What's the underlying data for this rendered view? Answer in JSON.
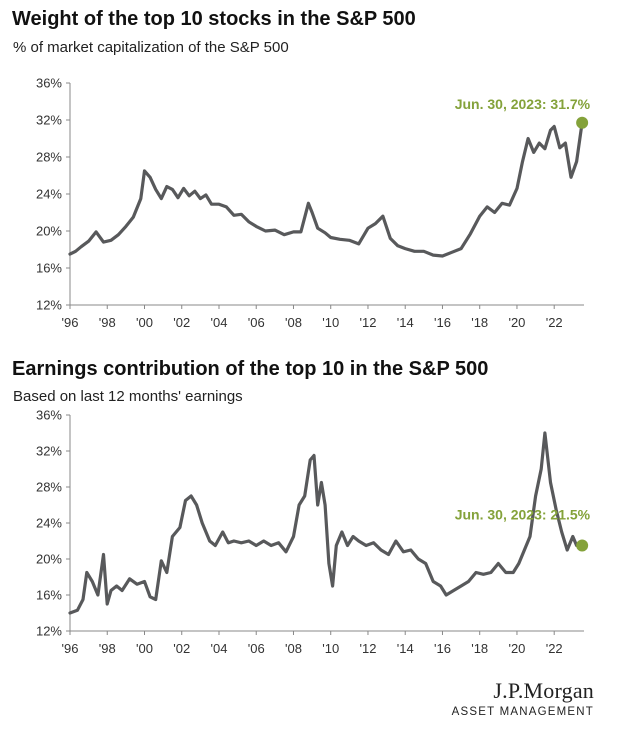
{
  "colors": {
    "line": "#58595b",
    "accent": "#84a23a",
    "grid": "#d9d9d9",
    "axis": "#888888"
  },
  "brand": {
    "name": "J.P.Morgan",
    "sub": "ASSET MANAGEMENT"
  },
  "chart_data": [
    {
      "type": "line",
      "title": "Weight of the top 10 stocks in the S&P 500",
      "subtitle": "% of market capitalization of the S&P 500",
      "xlim": [
        1996,
        2023.6
      ],
      "ylim": [
        12,
        36
      ],
      "grid": false,
      "x_ticks": [
        1996,
        1998,
        2000,
        2002,
        2004,
        2006,
        2008,
        2010,
        2012,
        2014,
        2016,
        2018,
        2020,
        2022
      ],
      "x_tick_labels": [
        "'96",
        "'98",
        "'00",
        "'02",
        "'04",
        "'06",
        "'08",
        "'10",
        "'12",
        "'14",
        "'16",
        "'18",
        "'20",
        "'22"
      ],
      "y_ticks": [
        12,
        16,
        20,
        24,
        28,
        32,
        36
      ],
      "y_tick_labels": [
        "12%",
        "16%",
        "20%",
        "24%",
        "28%",
        "32%",
        "36%"
      ],
      "series": [
        {
          "x": [
            1996.0,
            1996.3,
            1996.6,
            1997.0,
            1997.4,
            1997.8,
            1998.2,
            1998.6,
            1999.0,
            1999.4,
            1999.8,
            2000.0,
            2000.3,
            2000.6,
            2000.9,
            2001.2,
            2001.5,
            2001.8,
            2002.1,
            2002.4,
            2002.7,
            2003.0,
            2003.3,
            2003.6,
            2004.0,
            2004.4,
            2004.8,
            2005.2,
            2005.6,
            2006.0,
            2006.5,
            2007.0,
            2007.5,
            2008.0,
            2008.4,
            2008.8,
            2009.0,
            2009.3,
            2009.7,
            2010.0,
            2010.5,
            2011.0,
            2011.5,
            2012.0,
            2012.4,
            2012.8,
            2013.2,
            2013.6,
            2014.0,
            2014.5,
            2015.0,
            2015.5,
            2016.0,
            2016.5,
            2017.0,
            2017.5,
            2018.0,
            2018.4,
            2018.8,
            2019.2,
            2019.6,
            2020.0,
            2020.3,
            2020.6,
            2020.9,
            2021.2,
            2021.5,
            2021.8,
            2022.0,
            2022.3,
            2022.6,
            2022.9,
            2023.2,
            2023.5
          ],
          "values": [
            17.5,
            17.8,
            18.3,
            18.9,
            19.9,
            18.8,
            19.0,
            19.6,
            20.5,
            21.5,
            23.5,
            26.5,
            25.8,
            24.5,
            23.5,
            24.8,
            24.5,
            23.6,
            24.6,
            23.8,
            24.3,
            23.5,
            23.9,
            22.9,
            22.9,
            22.6,
            21.7,
            21.8,
            21.0,
            20.5,
            20.0,
            20.1,
            19.6,
            19.9,
            19.9,
            23.0,
            22.0,
            20.3,
            19.8,
            19.3,
            19.1,
            19.0,
            18.6,
            20.3,
            20.8,
            21.6,
            19.2,
            18.4,
            18.1,
            17.8,
            17.8,
            17.4,
            17.3,
            17.7,
            18.1,
            19.7,
            21.6,
            22.6,
            22.0,
            23.0,
            22.8,
            24.6,
            27.5,
            30.0,
            28.5,
            29.5,
            28.9,
            30.9,
            31.3,
            29.0,
            29.5,
            25.8,
            27.5,
            31.7
          ]
        }
      ],
      "highlight": {
        "x": 2023.5,
        "y": 31.7,
        "label": "Jun. 30, 2023: 31.7%"
      }
    },
    {
      "type": "line",
      "title": "Earnings contribution of the top 10 in the S&P 500",
      "subtitle": "Based on last 12 months' earnings",
      "xlim": [
        1996,
        2023.6
      ],
      "ylim": [
        12,
        36
      ],
      "grid": false,
      "x_ticks": [
        1996,
        1998,
        2000,
        2002,
        2004,
        2006,
        2008,
        2010,
        2012,
        2014,
        2016,
        2018,
        2020,
        2022
      ],
      "x_tick_labels": [
        "'96",
        "'98",
        "'00",
        "'02",
        "'04",
        "'06",
        "'08",
        "'10",
        "'12",
        "'14",
        "'16",
        "'18",
        "'20",
        "'22"
      ],
      "y_ticks": [
        12,
        16,
        20,
        24,
        28,
        32,
        36
      ],
      "y_tick_labels": [
        "12%",
        "16%",
        "20%",
        "24%",
        "28%",
        "32%",
        "36%"
      ],
      "series": [
        {
          "x": [
            1996.0,
            1996.4,
            1996.7,
            1996.9,
            1997.2,
            1997.5,
            1997.8,
            1998.0,
            1998.2,
            1998.5,
            1998.8,
            1999.2,
            1999.6,
            2000.0,
            2000.3,
            2000.6,
            2000.9,
            2001.2,
            2001.5,
            2001.9,
            2002.2,
            2002.5,
            2002.8,
            2003.1,
            2003.5,
            2003.8,
            2004.2,
            2004.5,
            2004.8,
            2005.2,
            2005.6,
            2006.0,
            2006.4,
            2006.8,
            2007.2,
            2007.6,
            2008.0,
            2008.3,
            2008.6,
            2008.9,
            2009.1,
            2009.3,
            2009.5,
            2009.7,
            2009.9,
            2010.1,
            2010.3,
            2010.6,
            2010.9,
            2011.2,
            2011.5,
            2011.9,
            2012.3,
            2012.7,
            2013.1,
            2013.5,
            2013.9,
            2014.3,
            2014.7,
            2015.1,
            2015.5,
            2015.9,
            2016.2,
            2016.6,
            2017.0,
            2017.4,
            2017.8,
            2018.2,
            2018.6,
            2019.0,
            2019.4,
            2019.8,
            2020.1,
            2020.4,
            2020.7,
            2021.0,
            2021.3,
            2021.5,
            2021.8,
            2022.1,
            2022.4,
            2022.7,
            2023.0,
            2023.2,
            2023.5
          ],
          "values": [
            14.0,
            14.3,
            15.5,
            18.5,
            17.5,
            16.0,
            20.5,
            15.0,
            16.5,
            17.0,
            16.5,
            17.8,
            17.2,
            17.5,
            15.8,
            15.5,
            19.8,
            18.5,
            22.5,
            23.5,
            26.5,
            27.0,
            26.0,
            24.0,
            22.0,
            21.5,
            23.0,
            21.8,
            22.0,
            21.8,
            22.0,
            21.5,
            22.0,
            21.5,
            21.8,
            20.8,
            22.5,
            26.0,
            27.0,
            31.0,
            31.5,
            26.0,
            28.5,
            26.0,
            19.5,
            17.0,
            21.5,
            23.0,
            21.5,
            22.5,
            22.0,
            21.5,
            21.8,
            21.0,
            20.5,
            22.0,
            20.8,
            21.0,
            20.0,
            19.5,
            17.5,
            17.0,
            16.0,
            16.5,
            17.0,
            17.5,
            18.5,
            18.3,
            18.5,
            19.5,
            18.5,
            18.5,
            19.5,
            21.0,
            22.5,
            27.0,
            30.0,
            34.0,
            28.5,
            25.5,
            23.0,
            21.0,
            22.5,
            21.5,
            21.5
          ]
        }
      ],
      "highlight": {
        "x": 2023.5,
        "y": 21.5,
        "label": "Jun. 30, 2023: 21.5%"
      }
    }
  ]
}
